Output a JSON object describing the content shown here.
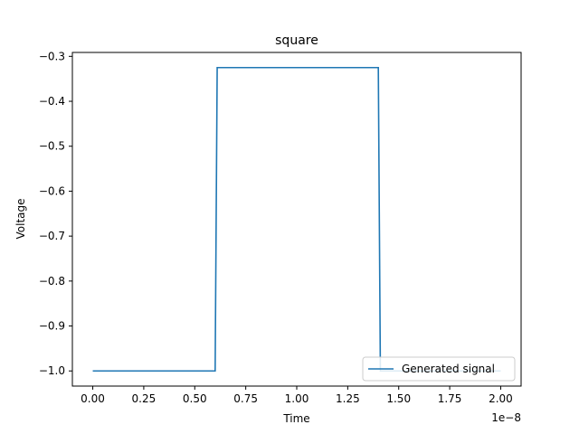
{
  "chart_data": {
    "type": "line",
    "title": "square",
    "xlabel": "Time",
    "ylabel": "Voltage",
    "x_offset_label": "1e−8",
    "xlim": [
      -0.1,
      2.1
    ],
    "ylim": [
      -1.0337,
      -0.2913
    ],
    "x_ticks": [
      0.0,
      0.25,
      0.5,
      0.75,
      1.0,
      1.25,
      1.5,
      1.75,
      2.0
    ],
    "x_tick_labels": [
      "0.00",
      "0.25",
      "0.50",
      "0.75",
      "1.00",
      "1.25",
      "1.50",
      "1.75",
      "2.00"
    ],
    "y_ticks": [
      -1.0,
      -0.9,
      -0.8,
      -0.7,
      -0.6,
      -0.5,
      -0.4,
      -0.3
    ],
    "y_tick_labels": [
      "−1.0",
      "−0.9",
      "−0.8",
      "−0.7",
      "−0.6",
      "−0.5",
      "−0.4",
      "−0.3"
    ],
    "grid": false,
    "legend_position": "lower-right",
    "series": [
      {
        "name": "Generated signal",
        "color": "#1f77b4",
        "x": [
          0.0,
          0.6,
          0.61,
          1.4,
          1.41,
          2.0
        ],
        "y": [
          -1.0,
          -1.0,
          -0.325,
          -0.325,
          -1.0,
          -1.0
        ]
      }
    ]
  }
}
